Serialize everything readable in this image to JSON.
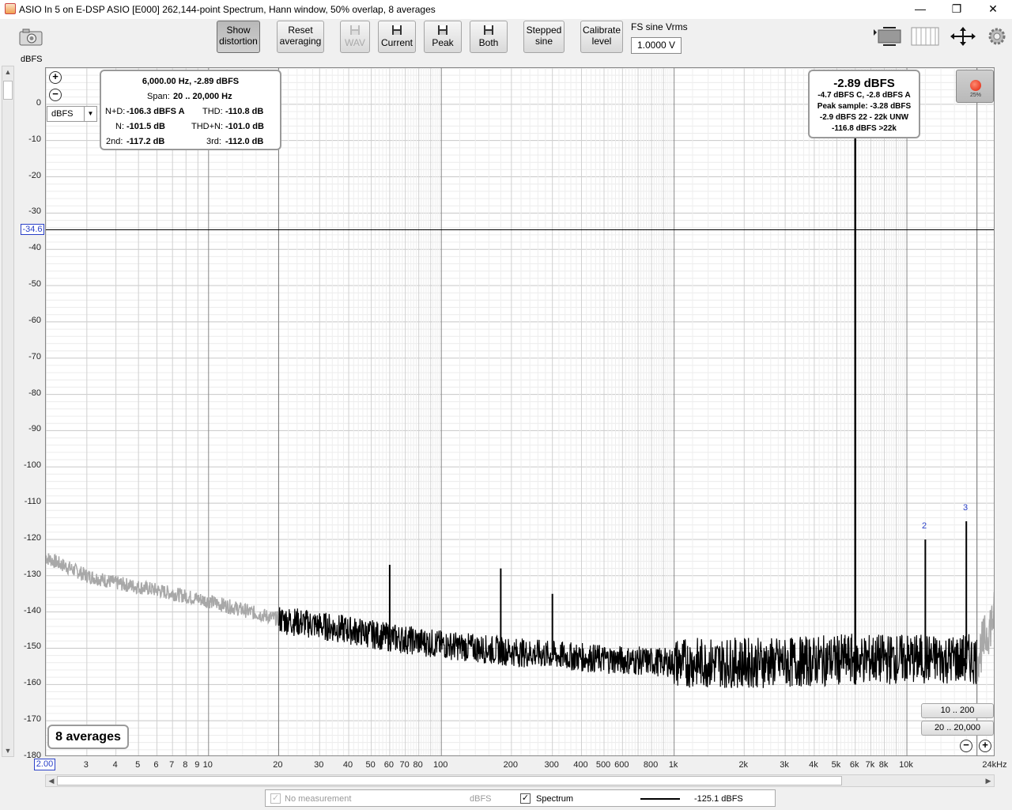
{
  "window": {
    "title": "ASIO In 5 on E-DSP ASIO [E000] 262,144-point Spectrum, Hann window, 50% overlap, 8 averages"
  },
  "toolbar": {
    "show_distortion": "Show distortion",
    "reset_averaging": "Reset averaging",
    "wav": "WAV",
    "current": "Current",
    "peak": "Peak",
    "both": "Both",
    "stepped_sine": "Stepped sine",
    "calibrate_level": "Calibrate level",
    "fs_label": "FS sine Vrms",
    "fs_value": "1.0000 V"
  },
  "axis": {
    "y_unit": "dBFS",
    "x_unit_suffix": "24kHz",
    "cursor_y": "-34.6",
    "cursor_x": "2.00",
    "unit_select": "dBFS"
  },
  "info_box": {
    "line1": "6,000.00 Hz, -2.89 dBFS",
    "span_label": "Span:",
    "span_value": "20 .. 20,000 Hz",
    "nd_label": "N+D:",
    "nd_value": "-106.3 dBFS A",
    "thd_label": "THD:",
    "thd_value": "-110.8 dB",
    "n_label": "N:",
    "n_value": "-101.5 dB",
    "thdn_label": "THD+N:",
    "thdn_value": "-101.0 dB",
    "h2_label": "2nd:",
    "h2_value": "-117.2 dB",
    "h3_label": "3rd:",
    "h3_value": "-112.0 dB"
  },
  "peak_box": {
    "main": "-2.89 dBFS",
    "l1": "-4.7 dBFS C, -2.8 dBFS A",
    "l2": "Peak sample: -3.28 dBFS",
    "l3": "-2.9 dBFS 22 - 22k UNW",
    "l4": "-116.8 dBFS >22k"
  },
  "averages_label": "8 averages",
  "record_pct": "25%",
  "range_buttons": {
    "a": "10 .. 200",
    "b": "20 .. 20,000"
  },
  "harmonic_labels": {
    "h2": "2",
    "h3": "3"
  },
  "legend": {
    "no_measurement": "No measurement",
    "unit1": "dBFS",
    "spectrum": "Spectrum",
    "value": "-125.1 dBFS"
  },
  "chart_data": {
    "type": "line",
    "ylabel": "dBFS",
    "ylim": [
      -180,
      10
    ],
    "x_scale": "log",
    "xlim": [
      2,
      24000
    ],
    "y_ticks": [
      "0",
      "-10",
      "-20",
      "-30",
      "-40",
      "-50",
      "-60",
      "-70",
      "-80",
      "-90",
      "-100",
      "-110",
      "-120",
      "-130",
      "-140",
      "-150",
      "-160",
      "-170",
      "-180"
    ],
    "x_ticks": [
      "3",
      "4",
      "5",
      "6",
      "7",
      "8",
      "9",
      "10",
      "20",
      "30",
      "40",
      "50",
      "60",
      "70",
      "80",
      "100",
      "200",
      "300",
      "400",
      "500",
      "600",
      "800",
      "1k",
      "2k",
      "3k",
      "4k",
      "5k",
      "6k",
      "7k",
      "8k",
      "10k"
    ],
    "series": [
      {
        "points": [
          [
            2,
            -125
          ],
          [
            3,
            -130
          ],
          [
            4,
            -132
          ],
          [
            6,
            -134
          ],
          [
            10,
            -137
          ],
          [
            20,
            -142
          ],
          [
            40,
            -145
          ],
          [
            60,
            -147
          ],
          [
            100,
            -149
          ],
          [
            200,
            -151
          ],
          [
            500,
            -153
          ],
          [
            1000,
            -154
          ],
          [
            3000,
            -154
          ],
          [
            5800,
            -153
          ],
          [
            6000,
            -2.89
          ],
          [
            6200,
            -153
          ],
          [
            12000,
            -121
          ],
          [
            18000,
            -114
          ],
          [
            20000,
            -153
          ],
          [
            24000,
            -140
          ]
        ],
        "spurs": [
          [
            60,
            -127
          ],
          [
            180,
            -128
          ],
          [
            300,
            -135
          ],
          [
            12000,
            -120
          ],
          [
            18000,
            -115
          ]
        ]
      }
    ]
  }
}
